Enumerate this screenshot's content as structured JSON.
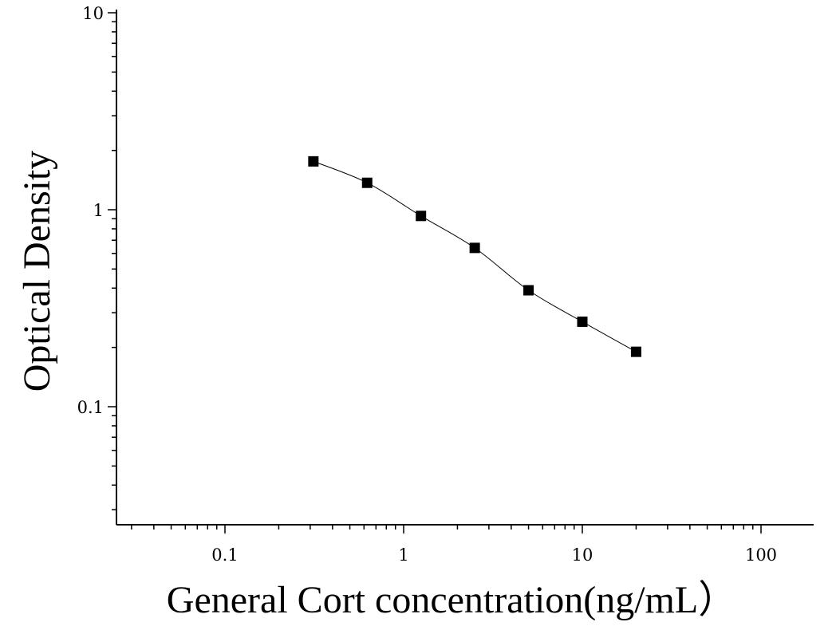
{
  "chart_data": {
    "type": "scatter",
    "title": "",
    "xlabel": "General Cort concentration(ng/mL）",
    "ylabel": "Optical Density",
    "x_scale": "log",
    "y_scale": "log",
    "xlim": [
      0.025,
      200
    ],
    "ylim": [
      0.027,
      10
    ],
    "x_ticks": [
      {
        "value": 0.1,
        "label": "0.1"
      },
      {
        "value": 1,
        "label": "1"
      },
      {
        "value": 10,
        "label": "10"
      },
      {
        "value": 100,
        "label": "100"
      }
    ],
    "y_ticks": [
      {
        "value": 0.1,
        "label": "0.1"
      },
      {
        "value": 1,
        "label": "1"
      },
      {
        "value": 10,
        "label": "10"
      }
    ],
    "grid": false,
    "legend": "none",
    "fit": "4-parameter logistic",
    "series": [
      {
        "marker": "square",
        "color": "#000000",
        "x": [
          0.3125,
          0.625,
          1.25,
          2.5,
          5,
          10,
          20
        ],
        "y": [
          1.76,
          1.37,
          0.93,
          0.64,
          0.39,
          0.27,
          0.19
        ]
      }
    ]
  }
}
